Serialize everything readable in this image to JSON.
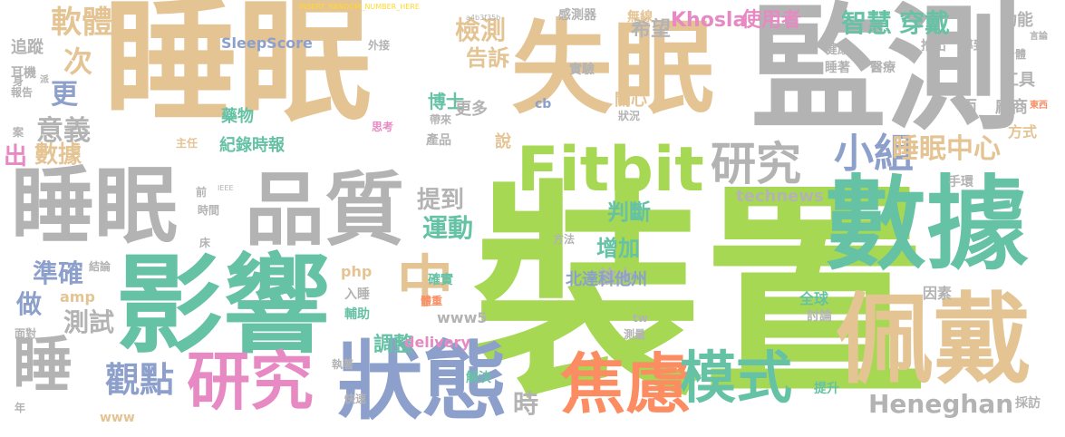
{
  "colors": {
    "tan": "#e5c494",
    "green": "#a6d854",
    "teal": "#66c2a5",
    "gray": "#b3b3b3",
    "orange": "#fc8d62",
    "blue": "#8da0cb",
    "pink": "#e78ac3",
    "yellow": "#ffd92f"
  },
  "words": [
    "睡眠",
    "裝置",
    "監測",
    "失眠",
    "影響",
    "數據",
    "品質",
    "睡眠",
    "Fitbit",
    "狀態",
    "焦慮",
    "佩戴",
    "研究",
    "模式",
    "睡",
    "中",
    "研究",
    "小組",
    "觀點",
    "軟體",
    "次",
    "更",
    "意義",
    "數據",
    "出",
    "準確",
    "做",
    "測試",
    "提到",
    "運動",
    "檢測",
    "告訴",
    "希望",
    "智慧",
    "穿戴",
    "睡眠中心",
    "Heneghan",
    "時",
    "調整",
    "判斷",
    "增加",
    "放大",
    "北達科他州",
    "Khosla",
    "使用者",
    "SleepScore",
    "technews",
    "www5",
    "delivery",
    "php",
    "amp",
    "www",
    "博士",
    "實驗",
    "關心",
    "功能",
    "工具",
    "廠商",
    "兩",
    "產品",
    "更多",
    "說",
    "藥物",
    "紀錄時報",
    "感測器",
    "無線",
    "推出",
    "導致",
    "健康",
    "睡著",
    "醫療",
    "手環",
    "方式",
    "追蹤",
    "耳機",
    "報告",
    "全球",
    "討論",
    "因素",
    "解決",
    "提升",
    "輔助",
    "執著",
    "確實",
    "體重",
    "入睡",
    "INSERT_RANDOM_NUMBER_HERE",
    "a4b3f35b",
    "IEEE",
    "cb",
    "外接",
    "方法",
    "時間",
    "床",
    "前",
    "身體",
    "狀況",
    "帶來",
    "結論",
    "快速",
    "tw",
    "測量",
    "面對",
    "採訪",
    "言論",
    "東西",
    "主任",
    "思考",
    "身",
    "派",
    "案",
    "年"
  ]
}
